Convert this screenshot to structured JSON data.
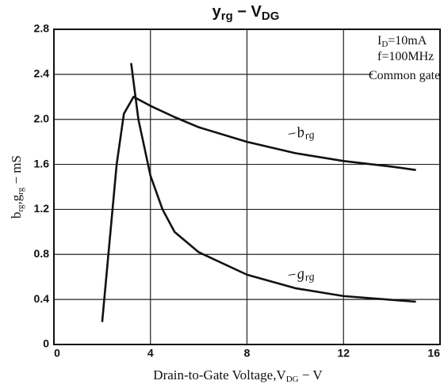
{
  "chart_data": {
    "type": "line",
    "title": [
      "y",
      "rg",
      " − V",
      "DG"
    ],
    "x_label": [
      "Drain-to-Gate Voltage,V",
      "DG",
      " − V"
    ],
    "y_label": [
      "b",
      "rg",
      ",g",
      "rg",
      " − mS"
    ],
    "annotations": [
      [
        "I",
        "D",
        "=10mA"
      ],
      [
        "f=100MHz"
      ],
      [
        "Common gate"
      ]
    ],
    "xlim": [
      0,
      16
    ],
    "xticks": [
      0,
      4,
      8,
      12,
      16
    ],
    "ylim": [
      0,
      2.8
    ],
    "yticks": [
      0,
      0.4,
      0.8,
      1.2,
      1.6,
      {
        "value": 2,
        "label": "2.0"
      },
      2.4,
      2.8
    ],
    "grid": true,
    "series": [
      {
        "name": [
          "−b",
          "rg"
        ],
        "color": "#111111",
        "x": [
          2,
          2.3,
          2.6,
          2.9,
          3.3,
          4,
          5,
          6,
          8,
          10,
          12,
          14,
          15
        ],
        "values": [
          0.2,
          0.9,
          1.6,
          2.05,
          2.2,
          2.12,
          2.02,
          1.93,
          1.8,
          1.7,
          1.63,
          1.58,
          1.55
        ]
      },
      {
        "name": [
          "−g",
          "rg"
        ],
        "color": "#111111",
        "x": [
          3.2,
          3.5,
          4,
          4.5,
          5,
          6,
          8,
          10,
          12,
          15
        ],
        "values": [
          2.5,
          2.0,
          1.5,
          1.2,
          1.0,
          0.82,
          0.62,
          0.5,
          0.43,
          0.38
        ]
      }
    ]
  }
}
